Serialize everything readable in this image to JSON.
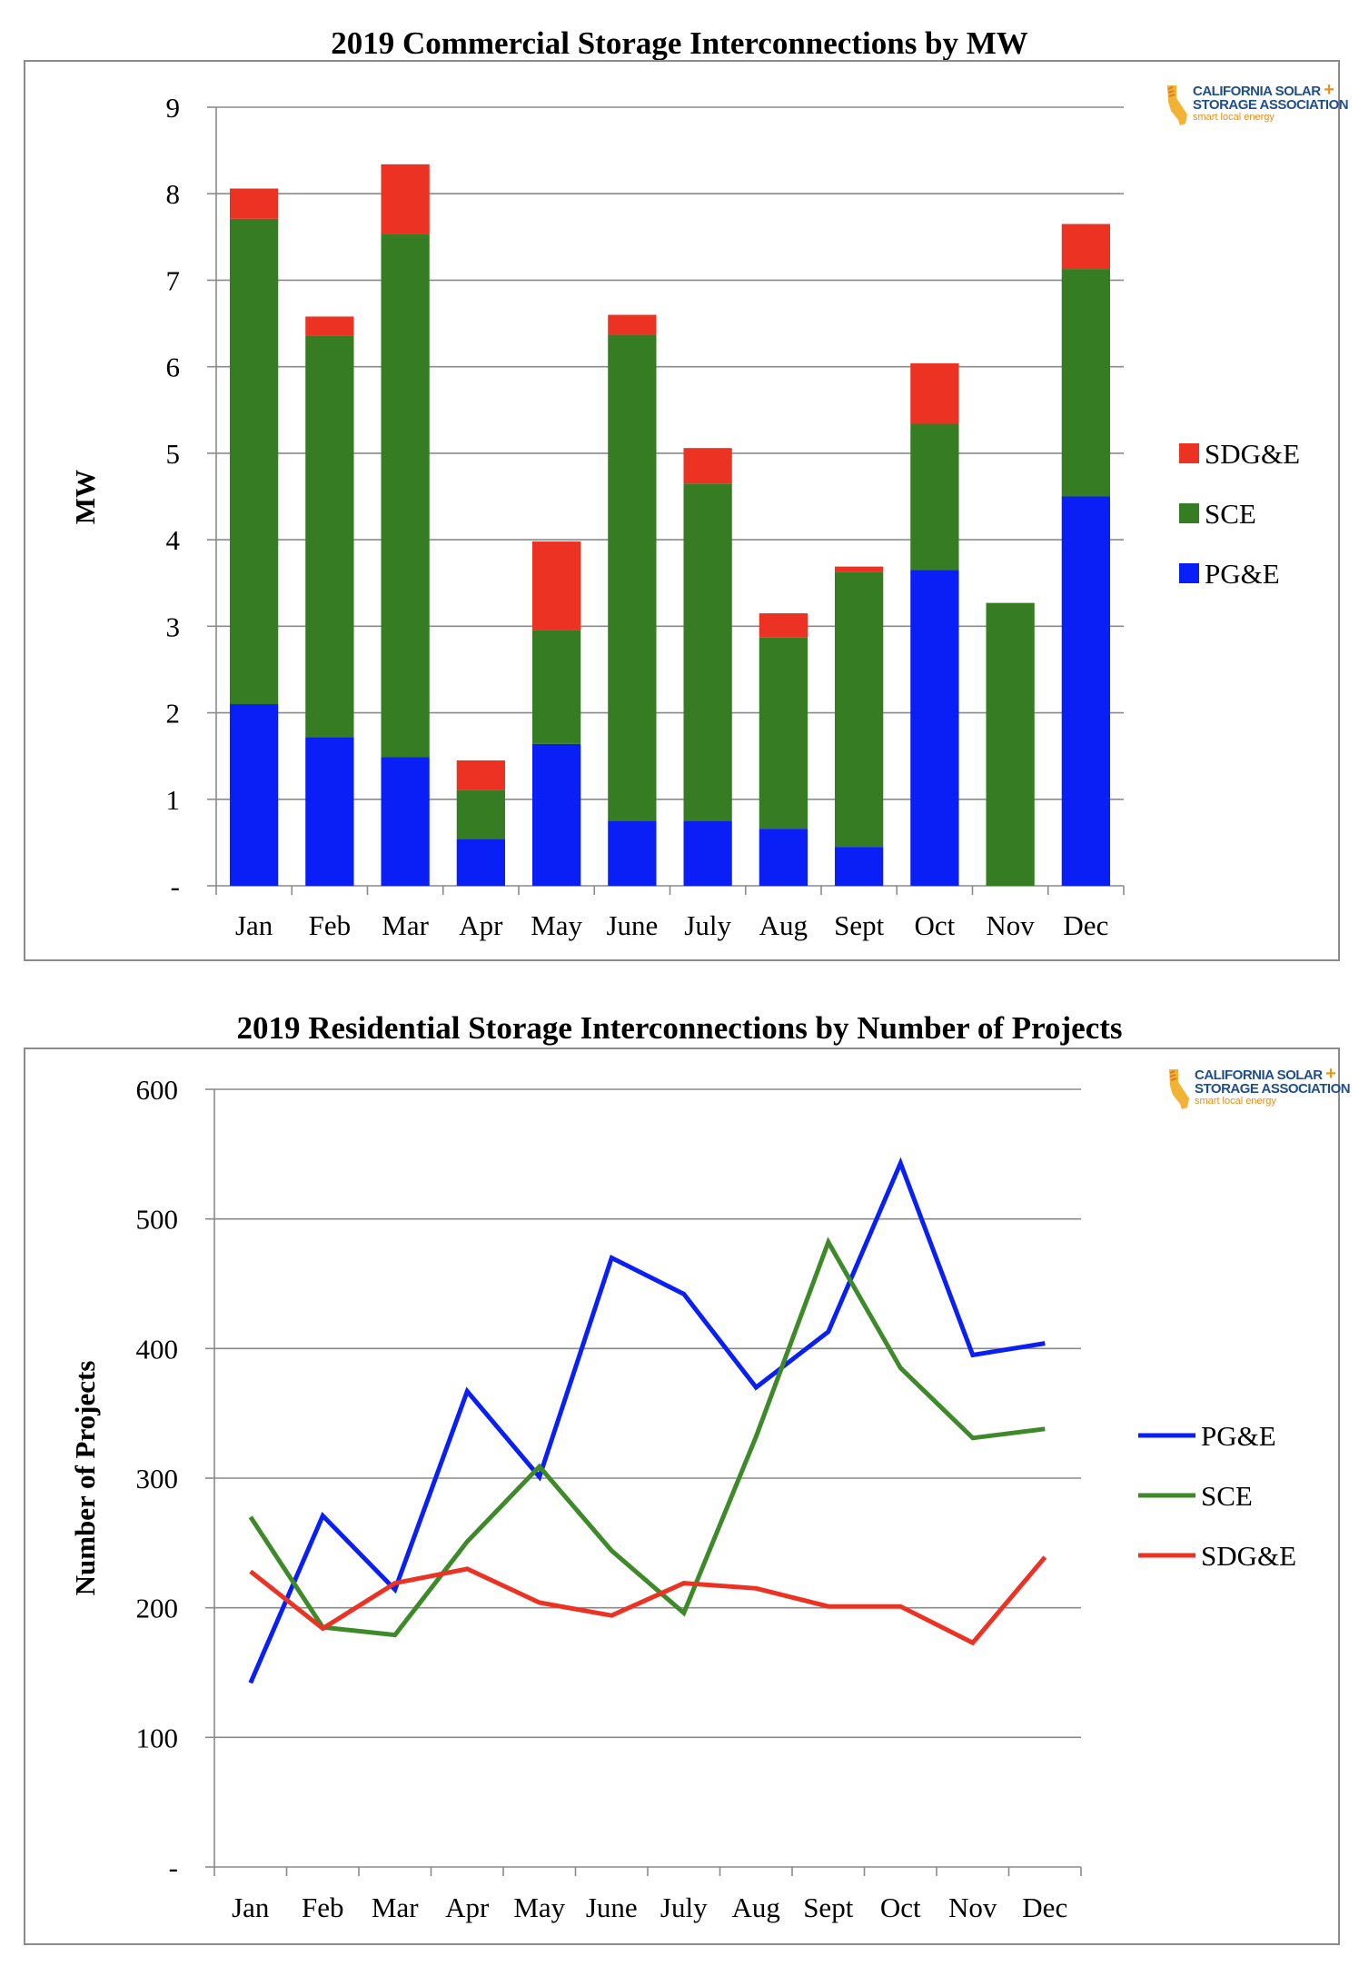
{
  "logo": {
    "line1": "CALIFORNIA SOLAR",
    "plus": "+",
    "line2": "STORAGE ASSOCIATION",
    "tagline": "smart local energy"
  },
  "chart_data": [
    {
      "type": "bar",
      "stacked": true,
      "title": "2019 Commercial Storage Interconnections by MW",
      "xlabel": "",
      "ylabel": "MW",
      "ylim": [
        0,
        9
      ],
      "yticks": [
        "-",
        "1",
        "2",
        "3",
        "4",
        "5",
        "6",
        "7",
        "8",
        "9"
      ],
      "grid": true,
      "legend_position": "right",
      "categories": [
        "Jan",
        "Feb",
        "Mar",
        "Apr",
        "May",
        "June",
        "July",
        "Aug",
        "Sept",
        "Oct",
        "Nov",
        "Dec"
      ],
      "series": [
        {
          "name": "PG&E",
          "color": "#0a1ff5",
          "values": [
            2.1,
            1.72,
            1.49,
            0.54,
            1.64,
            0.75,
            0.75,
            0.66,
            0.45,
            3.65,
            0.0,
            4.5
          ]
        },
        {
          "name": "SCE",
          "color": "#367c23",
          "values": [
            5.61,
            4.64,
            6.04,
            0.57,
            1.32,
            5.62,
            3.9,
            2.21,
            3.18,
            1.69,
            3.27,
            2.63
          ]
        },
        {
          "name": "SDG&E",
          "color": "#eb3223",
          "values": [
            0.35,
            0.22,
            0.81,
            0.34,
            1.02,
            0.23,
            0.41,
            0.28,
            0.06,
            0.7,
            0.0,
            0.52
          ]
        }
      ],
      "legend_order": [
        "SDG&E",
        "SCE",
        "PG&E"
      ]
    },
    {
      "type": "line",
      "title": "2019 Residential Storage Interconnections by Number of Projects",
      "xlabel": "",
      "ylabel": "Number of Projects",
      "ylim": [
        0,
        600
      ],
      "yticks": [
        "-",
        "100",
        "200",
        "300",
        "400",
        "500",
        "600"
      ],
      "grid": true,
      "legend_position": "right",
      "categories": [
        "Jan",
        "Feb",
        "Mar",
        "Apr",
        "May",
        "June",
        "July",
        "Aug",
        "Sept",
        "Oct",
        "Nov",
        "Dec"
      ],
      "series": [
        {
          "name": "PG&E",
          "color": "#0a1ff5",
          "values": [
            142,
            271,
            214,
            367,
            301,
            470,
            442,
            370,
            413,
            543,
            395,
            404
          ]
        },
        {
          "name": "SCE",
          "color": "#3e8a2a",
          "values": [
            270,
            185,
            179,
            251,
            309,
            244,
            196,
            332,
            482,
            385,
            331,
            338
          ]
        },
        {
          "name": "SDG&E",
          "color": "#eb3223",
          "values": [
            228,
            184,
            219,
            230,
            204,
            194,
            219,
            215,
            201,
            201,
            173,
            239
          ]
        }
      ],
      "legend_order": [
        "PG&E",
        "SCE",
        "SDG&E"
      ]
    }
  ]
}
